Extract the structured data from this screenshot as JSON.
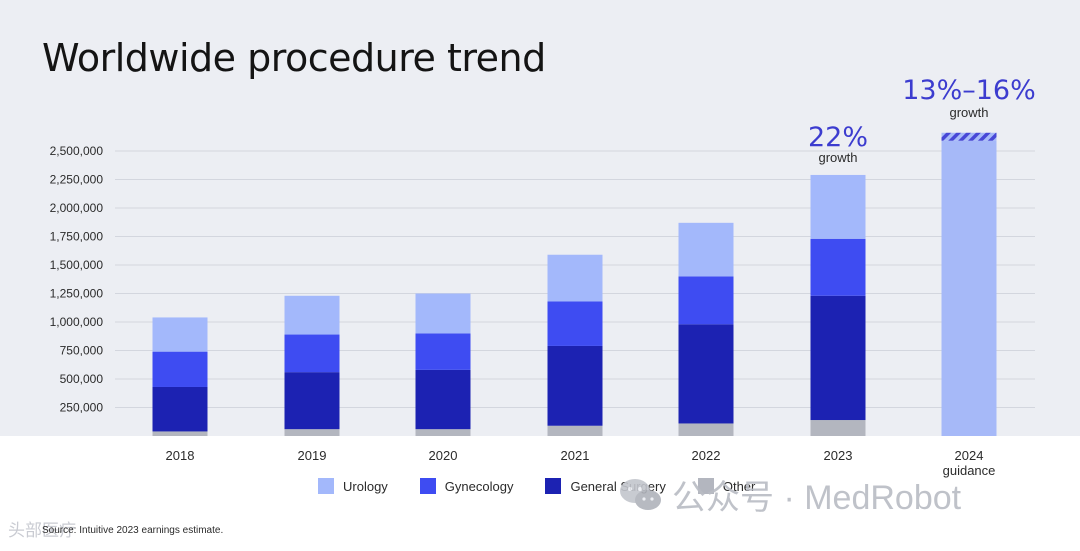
{
  "title": "Worldwide procedure trend",
  "footnote": "Source: Intuitive 2023 earnings estimate.",
  "watermark": "公众号 · MedRobot",
  "corner_mark": "头部医疗",
  "colors": {
    "background_top": "#eceef3",
    "urology": "#a3b8fb",
    "gynecology": "#3e4cf2",
    "general_surgery": "#1c22b2",
    "other": "#b3b6bf",
    "guidance": "#a6b9f8",
    "guidance_hatch": "#4747d6",
    "annotation": "#3c3ccf"
  },
  "chart_data": {
    "type": "bar",
    "stacked": true,
    "categories": [
      "2018",
      "2019",
      "2020",
      "2021",
      "2022",
      "2023",
      "2024"
    ],
    "category_sublabels": [
      "",
      "",
      "",
      "",
      "",
      "",
      "guidance"
    ],
    "series": [
      {
        "name": "Other",
        "color": "#b3b6bf",
        "values": [
          40000,
          60000,
          60000,
          90000,
          110000,
          140000,
          null
        ]
      },
      {
        "name": "General Surgery",
        "color": "#1c22b2",
        "values": [
          390000,
          500000,
          520000,
          700000,
          870000,
          1090000,
          null
        ]
      },
      {
        "name": "Gynecology",
        "color": "#3e4cf2",
        "values": [
          310000,
          330000,
          320000,
          390000,
          420000,
          500000,
          null
        ]
      },
      {
        "name": "Urology",
        "color": "#a3b8fb",
        "values": [
          300000,
          340000,
          350000,
          410000,
          470000,
          560000,
          null
        ]
      }
    ],
    "guidance": {
      "category": "2024",
      "low": 2590000,
      "high": 2660000,
      "label": "13%–16%",
      "sublabel": "growth"
    },
    "annotations": [
      {
        "category": "2023",
        "label": "22%",
        "sublabel": "growth"
      }
    ],
    "y_ticks": [
      {
        "value": 250000,
        "label": "250,000"
      },
      {
        "value": 500000,
        "label": "500,000"
      },
      {
        "value": 750000,
        "label": "750,000"
      },
      {
        "value": 1000000,
        "label": "1,000,000"
      },
      {
        "value": 1250000,
        "label": "1,250,000"
      },
      {
        "value": 1500000,
        "label": "1,500,000"
      },
      {
        "value": 1750000,
        "label": "1,750,000"
      },
      {
        "value": 2000000,
        "label": "2,000,000"
      },
      {
        "value": 2250000,
        "label": "2,250,000"
      },
      {
        "value": 2500000,
        "label": "2,500,000"
      }
    ],
    "ylim": [
      0,
      2500000
    ],
    "grid": true,
    "legend": {
      "position": "bottom",
      "items": [
        "Urology",
        "Gynecology",
        "General Surgery",
        "Other"
      ]
    },
    "xlabel": "",
    "ylabel": ""
  }
}
